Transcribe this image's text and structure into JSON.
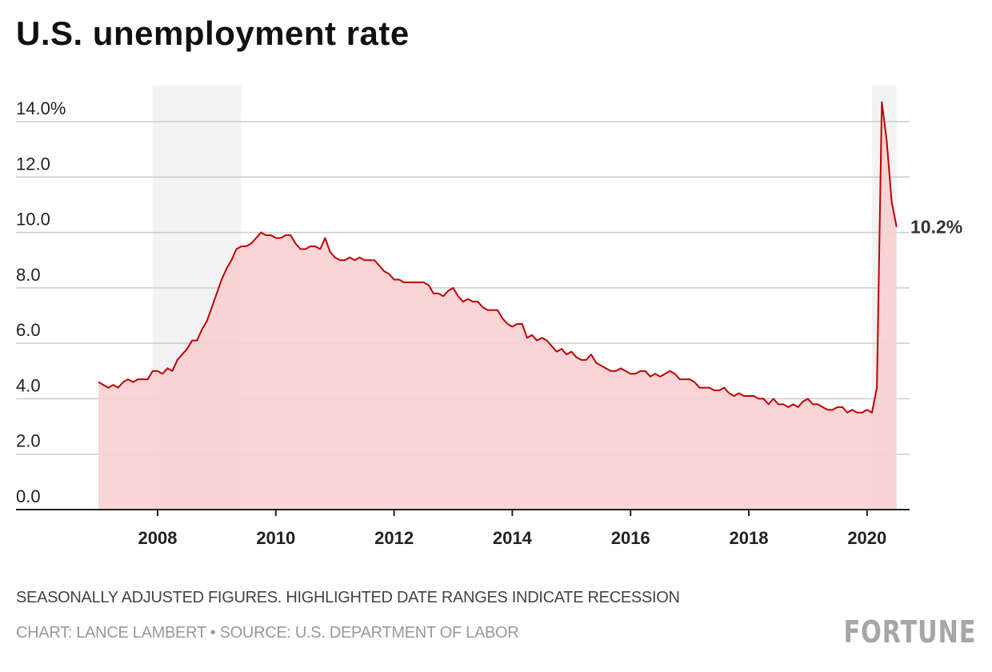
{
  "title": "U.S. unemployment rate",
  "notes": {
    "line1": "SEASONALLY ADJUSTED FIGURES. HIGHLIGHTED DATE RANGES INDICATE RECESSION",
    "line2": "CHART: LANCE LAMBERT • SOURCE: U.S. DEPARTMENT OF LABOR"
  },
  "logo": "FORTUNE",
  "colors": {
    "line": "#c00000",
    "fill": "#f9d0d2",
    "recession": "#f3f3f3",
    "grid": "#cccccc"
  },
  "chart_data": {
    "type": "area",
    "title": "U.S. unemployment rate",
    "xlabel": "",
    "ylabel": "",
    "start": "2007-01",
    "frequency": "monthly",
    "ylim": [
      0,
      14
    ],
    "yticks": [
      0,
      2,
      4,
      6,
      8,
      10,
      12,
      14
    ],
    "ytick_labels": [
      "0.0",
      "2.0",
      "4.0",
      "6.0",
      "8.0",
      "10.0",
      "12.0",
      "14.0%"
    ],
    "xticks": [
      2008,
      2010,
      2012,
      2014,
      2016,
      2018,
      2020
    ],
    "xtick_labels": [
      "2008",
      "2010",
      "2012",
      "2014",
      "2016",
      "2018",
      "2020"
    ],
    "recessions": [
      [
        "2007-12",
        "2009-06"
      ],
      [
        "2020-02",
        "2020-07"
      ]
    ],
    "end_label": "10.2%",
    "values": [
      4.6,
      4.5,
      4.4,
      4.5,
      4.4,
      4.6,
      4.7,
      4.6,
      4.7,
      4.7,
      4.7,
      5.0,
      5.0,
      4.9,
      5.1,
      5.0,
      5.4,
      5.6,
      5.8,
      6.1,
      6.1,
      6.5,
      6.8,
      7.3,
      7.8,
      8.3,
      8.7,
      9.0,
      9.4,
      9.5,
      9.5,
      9.6,
      9.8,
      10.0,
      9.9,
      9.9,
      9.8,
      9.8,
      9.9,
      9.9,
      9.6,
      9.4,
      9.4,
      9.5,
      9.5,
      9.4,
      9.8,
      9.3,
      9.1,
      9.0,
      9.0,
      9.1,
      9.0,
      9.1,
      9.0,
      9.0,
      9.0,
      8.8,
      8.6,
      8.5,
      8.3,
      8.3,
      8.2,
      8.2,
      8.2,
      8.2,
      8.2,
      8.1,
      7.8,
      7.8,
      7.7,
      7.9,
      8.0,
      7.7,
      7.5,
      7.6,
      7.5,
      7.5,
      7.3,
      7.2,
      7.2,
      7.2,
      6.9,
      6.7,
      6.6,
      6.7,
      6.7,
      6.2,
      6.3,
      6.1,
      6.2,
      6.1,
      5.9,
      5.7,
      5.8,
      5.6,
      5.7,
      5.5,
      5.4,
      5.4,
      5.6,
      5.3,
      5.2,
      5.1,
      5.0,
      5.0,
      5.1,
      5.0,
      4.9,
      4.9,
      5.0,
      5.0,
      4.8,
      4.9,
      4.8,
      4.9,
      5.0,
      4.9,
      4.7,
      4.7,
      4.7,
      4.6,
      4.4,
      4.4,
      4.4,
      4.3,
      4.3,
      4.4,
      4.2,
      4.1,
      4.2,
      4.1,
      4.1,
      4.1,
      4.0,
      4.0,
      3.8,
      4.0,
      3.8,
      3.8,
      3.7,
      3.8,
      3.7,
      3.9,
      4.0,
      3.8,
      3.8,
      3.7,
      3.6,
      3.6,
      3.7,
      3.7,
      3.5,
      3.6,
      3.5,
      3.5,
      3.6,
      3.5,
      4.4,
      14.7,
      13.3,
      11.1,
      10.2
    ]
  }
}
